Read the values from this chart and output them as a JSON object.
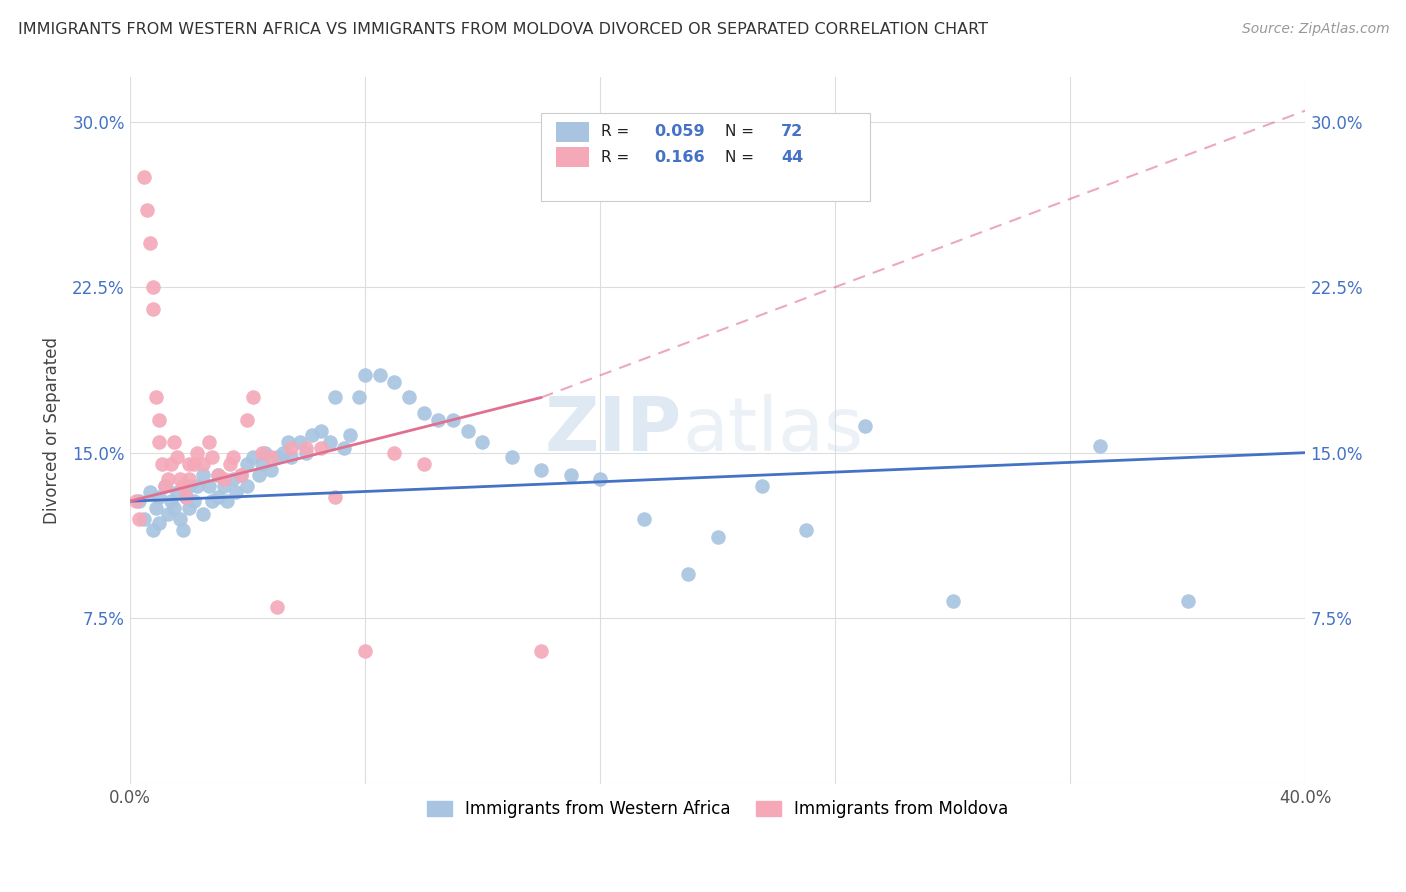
{
  "title": "IMMIGRANTS FROM WESTERN AFRICA VS IMMIGRANTS FROM MOLDOVA DIVORCED OR SEPARATED CORRELATION CHART",
  "source": "Source: ZipAtlas.com",
  "ylabel": "Divorced or Separated",
  "xlim": [
    0.0,
    0.4
  ],
  "ylim": [
    0.0,
    0.32
  ],
  "xtick_positions": [
    0.0,
    0.08,
    0.16,
    0.24,
    0.32,
    0.4
  ],
  "xticklabels": [
    "0.0%",
    "",
    "",
    "",
    "",
    "40.0%"
  ],
  "ytick_positions": [
    0.0,
    0.075,
    0.15,
    0.225,
    0.3
  ],
  "yticklabels": [
    "",
    "7.5%",
    "15.0%",
    "22.5%",
    "30.0%"
  ],
  "blue_R": 0.059,
  "blue_N": 72,
  "pink_R": 0.166,
  "pink_N": 44,
  "blue_color": "#a8c4e0",
  "pink_color": "#f4a8b8",
  "blue_line_color": "#4472c4",
  "pink_line_color": "#e07090",
  "watermark_text": "ZIPatlas",
  "legend_label_blue": "Immigrants from Western Africa",
  "legend_label_pink": "Immigrants from Moldova",
  "blue_points_x": [
    0.003,
    0.005,
    0.007,
    0.008,
    0.009,
    0.01,
    0.01,
    0.012,
    0.013,
    0.014,
    0.015,
    0.016,
    0.017,
    0.018,
    0.019,
    0.02,
    0.02,
    0.022,
    0.023,
    0.025,
    0.025,
    0.027,
    0.028,
    0.03,
    0.03,
    0.032,
    0.033,
    0.035,
    0.036,
    0.038,
    0.04,
    0.04,
    0.042,
    0.044,
    0.045,
    0.046,
    0.048,
    0.05,
    0.052,
    0.054,
    0.055,
    0.058,
    0.06,
    0.062,
    0.065,
    0.068,
    0.07,
    0.073,
    0.075,
    0.078,
    0.08,
    0.085,
    0.09,
    0.095,
    0.1,
    0.105,
    0.11,
    0.115,
    0.12,
    0.13,
    0.14,
    0.15,
    0.16,
    0.175,
    0.19,
    0.2,
    0.215,
    0.23,
    0.25,
    0.28,
    0.33,
    0.36
  ],
  "blue_points_y": [
    0.128,
    0.12,
    0.132,
    0.115,
    0.125,
    0.13,
    0.118,
    0.135,
    0.122,
    0.128,
    0.125,
    0.132,
    0.12,
    0.115,
    0.13,
    0.135,
    0.125,
    0.128,
    0.135,
    0.14,
    0.122,
    0.135,
    0.128,
    0.14,
    0.13,
    0.135,
    0.128,
    0.138,
    0.132,
    0.14,
    0.145,
    0.135,
    0.148,
    0.14,
    0.145,
    0.15,
    0.142,
    0.148,
    0.15,
    0.155,
    0.148,
    0.155,
    0.15,
    0.158,
    0.16,
    0.155,
    0.175,
    0.152,
    0.158,
    0.175,
    0.185,
    0.185,
    0.182,
    0.175,
    0.168,
    0.165,
    0.165,
    0.16,
    0.155,
    0.148,
    0.142,
    0.14,
    0.138,
    0.12,
    0.095,
    0.112,
    0.135,
    0.115,
    0.162,
    0.083,
    0.153,
    0.083
  ],
  "pink_points_x": [
    0.002,
    0.003,
    0.005,
    0.006,
    0.007,
    0.008,
    0.008,
    0.009,
    0.01,
    0.01,
    0.011,
    0.012,
    0.013,
    0.014,
    0.015,
    0.016,
    0.017,
    0.018,
    0.019,
    0.02,
    0.02,
    0.022,
    0.023,
    0.025,
    0.027,
    0.028,
    0.03,
    0.032,
    0.034,
    0.035,
    0.038,
    0.04,
    0.042,
    0.045,
    0.048,
    0.05,
    0.055,
    0.06,
    0.065,
    0.07,
    0.08,
    0.09,
    0.1,
    0.14
  ],
  "pink_points_y": [
    0.128,
    0.12,
    0.275,
    0.26,
    0.245,
    0.215,
    0.225,
    0.175,
    0.165,
    0.155,
    0.145,
    0.135,
    0.138,
    0.145,
    0.155,
    0.148,
    0.138,
    0.135,
    0.13,
    0.145,
    0.138,
    0.145,
    0.15,
    0.145,
    0.155,
    0.148,
    0.14,
    0.138,
    0.145,
    0.148,
    0.14,
    0.165,
    0.175,
    0.15,
    0.148,
    0.08,
    0.152,
    0.152,
    0.152,
    0.13,
    0.06,
    0.15,
    0.145,
    0.06
  ]
}
